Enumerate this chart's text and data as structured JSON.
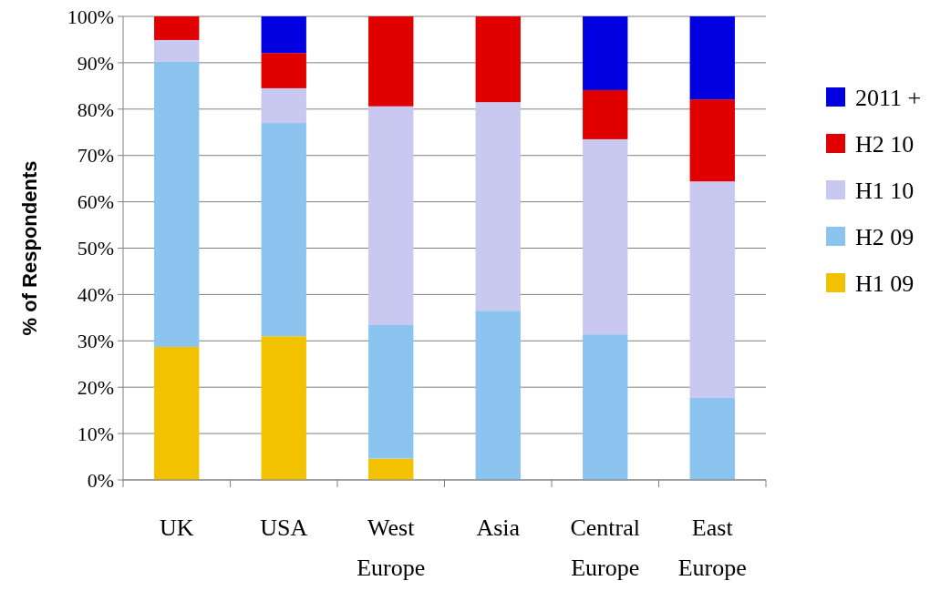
{
  "chart_data": {
    "type": "bar",
    "stacked": true,
    "ylabel": "% of Respondents",
    "categories": [
      "UK",
      "USA",
      "West Europe",
      "Asia",
      "Central Europe",
      "East Europe"
    ],
    "series": [
      {
        "name": "H1 09",
        "color": "#f2c200",
        "values": [
          28.7,
          31,
          4.6,
          0,
          0,
          0
        ]
      },
      {
        "name": "H2 09",
        "color": "#8cc4f0",
        "values": [
          61.5,
          46,
          28.8,
          36.5,
          31.4,
          17.7
        ]
      },
      {
        "name": "H1 10",
        "color": "#c8c8f0",
        "values": [
          4.7,
          7.5,
          47.2,
          45,
          42.1,
          46.7
        ]
      },
      {
        "name": "H2 10",
        "color": "#e00000",
        "values": [
          5.1,
          7.6,
          19.4,
          18.5,
          10.6,
          17.7
        ]
      },
      {
        "name": "2011 +",
        "color": "#0000e0",
        "values": [
          0,
          7.9,
          0,
          0,
          15.9,
          17.9
        ]
      }
    ],
    "ylim": [
      0,
      100
    ],
    "yticks": [
      {
        "value": 0,
        "label": "0%"
      },
      {
        "value": 10,
        "label": "10%"
      },
      {
        "value": 20,
        "label": "20%"
      },
      {
        "value": 30,
        "label": "30%"
      },
      {
        "value": 40,
        "label": "40%"
      },
      {
        "value": 50,
        "label": "50%"
      },
      {
        "value": 60,
        "label": "60%"
      },
      {
        "value": 70,
        "label": "70%"
      },
      {
        "value": 80,
        "label": "80%"
      },
      {
        "value": 90,
        "label": "90%"
      },
      {
        "value": 100,
        "label": "100%"
      }
    ],
    "grid": "y",
    "legend": "right"
  }
}
